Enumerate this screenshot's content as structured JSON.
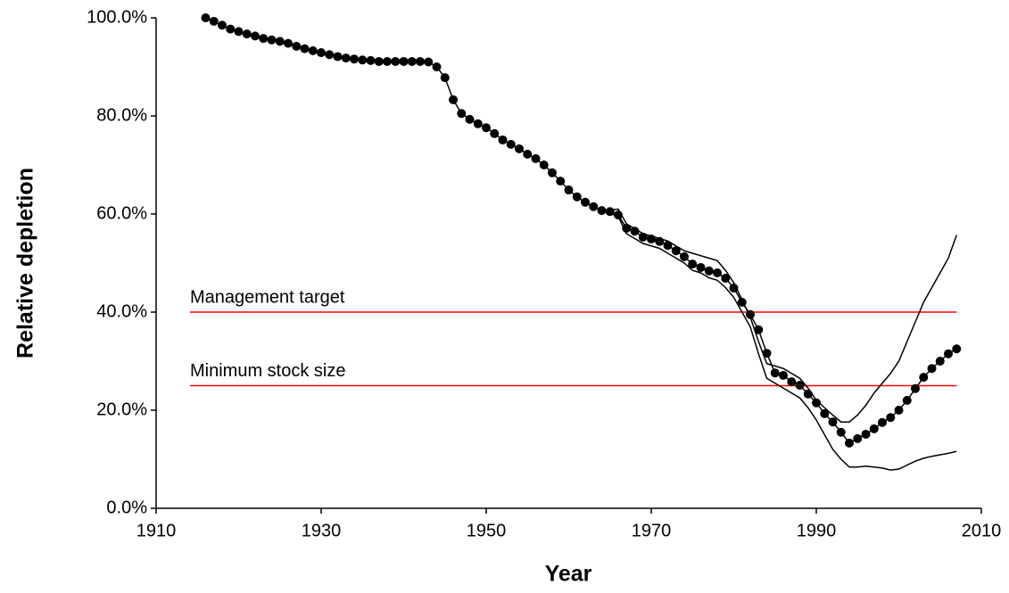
{
  "chart_data": {
    "type": "line",
    "x_label": "Year",
    "y_label": "Relative depletion",
    "xlim": [
      1910,
      2010
    ],
    "xticks": [
      1910,
      1930,
      1950,
      1970,
      1990,
      2010
    ],
    "ylim": [
      0,
      100
    ],
    "yticks": [
      {
        "value": 0,
        "label": "0.0%"
      },
      {
        "value": 20,
        "label": "20.0%"
      },
      {
        "value": 40,
        "label": "40.0%"
      },
      {
        "value": 60,
        "label": "60.0%"
      },
      {
        "value": 80,
        "label": "80.0%"
      },
      {
        "value": 100,
        "label": "100.0%"
      }
    ],
    "grid": false,
    "x": [
      1916,
      1917,
      1918,
      1919,
      1920,
      1921,
      1922,
      1923,
      1924,
      1925,
      1926,
      1927,
      1928,
      1929,
      1930,
      1931,
      1932,
      1933,
      1934,
      1935,
      1936,
      1937,
      1938,
      1939,
      1940,
      1941,
      1942,
      1943,
      1944,
      1945,
      1946,
      1947,
      1948,
      1949,
      1950,
      1951,
      1952,
      1953,
      1954,
      1955,
      1956,
      1957,
      1958,
      1959,
      1960,
      1961,
      1962,
      1963,
      1964,
      1965,
      1966,
      1967,
      1968,
      1969,
      1970,
      1971,
      1972,
      1973,
      1974,
      1975,
      1976,
      1977,
      1978,
      1979,
      1980,
      1981,
      1982,
      1983,
      1984,
      1985,
      1986,
      1987,
      1988,
      1989,
      1990,
      1991,
      1992,
      1993,
      1994,
      1995,
      1996,
      1997,
      1998,
      1999,
      2000,
      2001,
      2002,
      2003,
      2004,
      2005,
      2006,
      2007
    ],
    "series": [
      {
        "color": "#000000",
        "marker": "circle",
        "values": [
          100,
          99.3,
          98.5,
          97.7,
          97.2,
          96.7,
          96.3,
          95.8,
          95.5,
          95.2,
          94.8,
          94.2,
          93.7,
          93.3,
          92.9,
          92.5,
          92.1,
          91.8,
          91.6,
          91.4,
          91.3,
          91.1,
          91.1,
          91.1,
          91.1,
          91.1,
          91.1,
          91.0,
          90,
          87.8,
          83.3,
          80.5,
          79.3,
          78.4,
          77.6,
          76.4,
          75.1,
          74.2,
          73.3,
          72.2,
          71.3,
          70,
          68.4,
          66.7,
          64.9,
          63.5,
          62.4,
          61.5,
          60.7,
          60.5,
          59.8,
          57.1,
          56.5,
          55.3,
          54.9,
          54.4,
          53.6,
          52.5,
          51.3,
          49.8,
          49.1,
          48.4,
          48.0,
          46.9,
          44.9,
          42.0,
          39.5,
          36.4,
          31.6,
          27.6,
          27.1,
          25.8,
          25.1,
          23.3,
          21.5,
          19.3,
          17.6,
          15.5,
          13.3,
          14.2,
          15.1,
          16.2,
          17.5,
          18.5,
          20.0,
          22.0,
          24.4,
          26.7,
          28.5,
          30.0,
          31.5,
          32.5
        ]
      },
      {
        "color": "#000000",
        "marker": "none",
        "values": [
          null,
          null,
          null,
          null,
          null,
          null,
          null,
          null,
          null,
          null,
          null,
          null,
          null,
          null,
          null,
          null,
          null,
          null,
          null,
          null,
          null,
          null,
          null,
          null,
          null,
          null,
          null,
          null,
          null,
          null,
          null,
          null,
          null,
          null,
          null,
          null,
          null,
          null,
          null,
          null,
          null,
          null,
          null,
          null,
          null,
          null,
          null,
          null,
          null,
          60.8,
          61,
          58,
          57,
          56,
          55.5,
          55,
          54.5,
          53.5,
          52.5,
          52,
          51.5,
          51,
          50.5,
          48.5,
          46,
          42.5,
          39,
          34,
          29.5,
          29,
          28.5,
          27.5,
          26.5,
          24.5,
          22,
          20.5,
          19,
          17.6,
          17.6,
          19,
          21,
          23.5,
          25.5,
          27.5,
          30,
          34,
          38,
          42,
          45,
          48,
          51,
          55.7
        ]
      },
      {
        "color": "#000000",
        "marker": "none",
        "values": [
          null,
          null,
          null,
          null,
          null,
          null,
          null,
          null,
          null,
          null,
          null,
          null,
          null,
          null,
          null,
          null,
          null,
          null,
          null,
          null,
          null,
          null,
          null,
          null,
          null,
          null,
          null,
          null,
          null,
          null,
          null,
          null,
          null,
          null,
          null,
          null,
          null,
          null,
          null,
          null,
          null,
          null,
          null,
          null,
          null,
          null,
          null,
          null,
          null,
          60.2,
          59.5,
          56,
          55,
          54,
          53.5,
          53,
          52,
          51,
          50,
          48.5,
          48,
          47,
          46.5,
          45,
          43,
          40,
          37,
          31.5,
          26.5,
          25.5,
          24.5,
          23.5,
          22.5,
          20.5,
          18,
          15,
          12,
          10,
          8.4,
          8.4,
          8.6,
          8.4,
          8.2,
          7.8,
          8.0,
          8.8,
          9.6,
          10.2,
          10.6,
          10.9,
          11.2,
          11.6
        ]
      }
    ],
    "reference_lines": [
      {
        "value": 40,
        "label": "Management target",
        "color": "#ff0000"
      },
      {
        "value": 25,
        "label": "Minimum stock size",
        "color": "#ff0000"
      }
    ]
  }
}
